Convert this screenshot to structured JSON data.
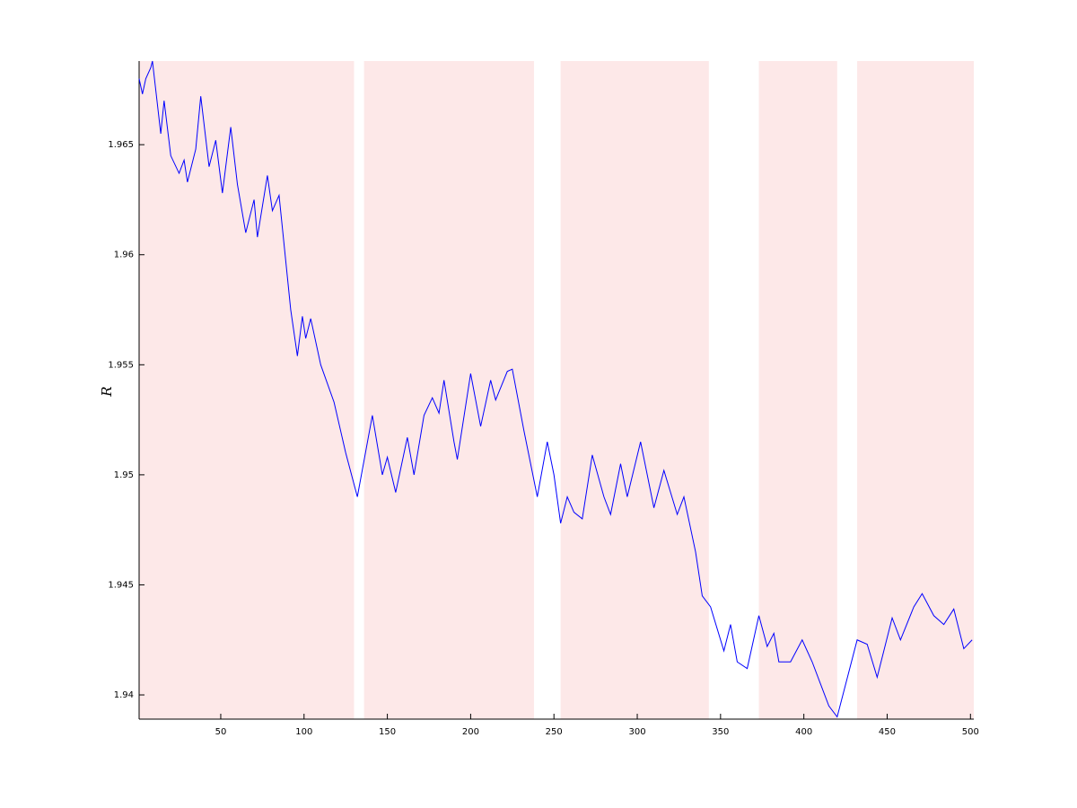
{
  "chart_data": {
    "type": "line",
    "ylabel": "R",
    "xlim": [
      1,
      502
    ],
    "ylim": [
      1.9389,
      1.9688
    ],
    "xticks": [
      50,
      100,
      150,
      200,
      250,
      300,
      350,
      400,
      450,
      500
    ],
    "yticks": [
      1.94,
      1.945,
      1.95,
      1.955,
      1.96,
      1.965
    ],
    "shaded_x": [
      [
        1,
        130
      ],
      [
        136,
        238
      ],
      [
        254,
        343
      ],
      [
        373,
        420
      ],
      [
        432,
        502
      ]
    ],
    "shade_color": "#fde8e8",
    "series": [
      {
        "color": "#0000ff",
        "x": [
          1,
          3,
          5,
          8,
          9,
          14,
          16,
          20,
          25,
          28,
          30,
          35,
          38,
          43,
          47,
          51,
          56,
          60,
          65,
          70,
          72,
          78,
          81,
          85,
          92,
          96,
          99,
          101,
          104,
          110,
          118,
          125,
          132,
          141,
          147,
          150,
          155,
          162,
          166,
          172,
          177,
          181,
          184,
          190,
          192,
          200,
          204,
          206,
          212,
          215,
          222,
          225,
          232,
          240,
          246,
          250,
          254,
          258,
          262,
          267,
          273,
          280,
          284,
          290,
          294,
          302,
          310,
          316,
          324,
          328,
          335,
          339,
          344,
          352,
          356,
          360,
          366,
          373,
          378,
          382,
          385,
          392,
          399,
          405,
          410,
          415,
          420,
          432,
          438,
          444,
          453,
          458,
          466,
          471,
          478,
          484,
          490,
          496,
          501
        ],
        "values": [
          1.968,
          1.9673,
          1.968,
          1.9685,
          1.9688,
          1.9655,
          1.967,
          1.9645,
          1.9637,
          1.9643,
          1.9633,
          1.9648,
          1.9672,
          1.964,
          1.9652,
          1.9628,
          1.9658,
          1.9632,
          1.961,
          1.9625,
          1.9608,
          1.9636,
          1.962,
          1.9627,
          1.9575,
          1.9554,
          1.9572,
          1.9562,
          1.9571,
          1.955,
          1.9533,
          1.951,
          1.949,
          1.9527,
          1.95,
          1.9508,
          1.9492,
          1.9517,
          1.95,
          1.9527,
          1.9535,
          1.9528,
          1.9543,
          1.9515,
          1.9507,
          1.9546,
          1.953,
          1.9522,
          1.9543,
          1.9534,
          1.9547,
          1.9548,
          1.952,
          1.949,
          1.9515,
          1.95,
          1.9478,
          1.949,
          1.9483,
          1.948,
          1.9509,
          1.949,
          1.9482,
          1.9505,
          1.949,
          1.9515,
          1.9485,
          1.9502,
          1.9482,
          1.949,
          1.9465,
          1.9445,
          1.944,
          1.942,
          1.9432,
          1.9415,
          1.9412,
          1.9436,
          1.9422,
          1.9428,
          1.9415,
          1.9415,
          1.9425,
          1.9415,
          1.9405,
          1.9395,
          1.939,
          1.9425,
          1.9423,
          1.9408,
          1.9435,
          1.9425,
          1.944,
          1.9446,
          1.9436,
          1.9432,
          1.9439,
          1.9421,
          1.9425
        ]
      }
    ]
  }
}
